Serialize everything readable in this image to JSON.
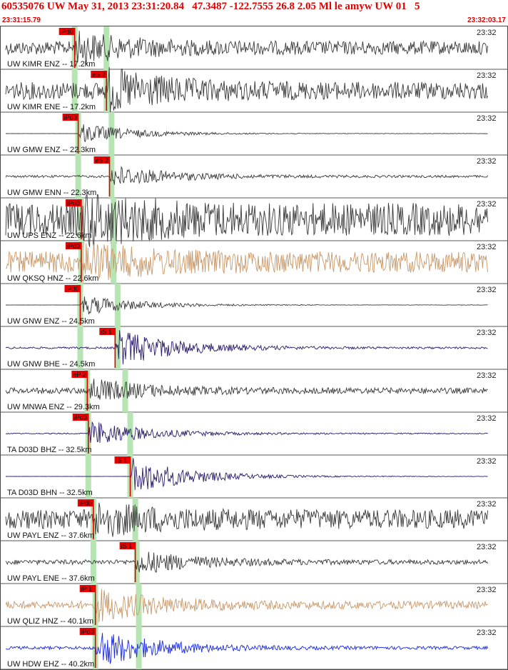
{
  "header": {
    "event_line": "60535076 UW May 31, 2013 23:31:20.84   47.3487 -122.7555 26.8 2.05 Ml le amyw UW 01   5",
    "start_time": "23:31:15.79",
    "end_time": "23:32:03.17"
  },
  "colors": {
    "pick": "#e00000",
    "pick_box": "#ee0000",
    "theoretical_band": "#b6e4b3",
    "trace_default": "#3a3a3a"
  },
  "traces": [
    {
      "label": "UW KIMR ENZ -- 17.2km",
      "time_label": "23:32",
      "pick": "iPd0",
      "pick_t": 0.145,
      "green_t": [
        0.145,
        0.208
      ],
      "color": "#3a3a3a",
      "flat": false,
      "noise": 0.35,
      "event_amp": 0.6
    },
    {
      "label": "UW KIMR ENE -- 17.2km",
      "time_label": "23:32",
      "pick": "eS 2",
      "pick_t": 0.208,
      "green_t": [
        0.145,
        0.208
      ],
      "color": "#3a3a3a",
      "flat": false,
      "noise": 0.45,
      "event_amp": 0.9
    },
    {
      "label": "UW GMW ENZ -- 22.3km",
      "time_label": "23:32",
      "pick": "iPd0",
      "pick_t": 0.152,
      "green_t": [
        0.152,
        0.218
      ],
      "color": "#3a3a3a",
      "flat": true,
      "noise": 0.01,
      "event_amp": 0.55
    },
    {
      "label": "UW GMW ENN -- 22.3km",
      "time_label": "23:32",
      "pick": "eS 2",
      "pick_t": 0.214,
      "green_t": [
        0.152,
        0.218
      ],
      "color": "#3a3a3a",
      "flat": false,
      "noise": 0.06,
      "event_amp": 0.6
    },
    {
      "label": "UW UPS ENZ -- 22.6km",
      "time_label": "23:32",
      "pick": "iPd0",
      "pick_t": 0.158,
      "green_t": [
        0.158,
        0.222
      ],
      "color": "#3a3a3a",
      "flat": false,
      "noise": 0.85,
      "event_amp": 0.9
    },
    {
      "label": "UW QKSQ HNZ -- 22.6km",
      "time_label": "23:32",
      "pick": "iPd0",
      "pick_t": 0.158,
      "green_t": [
        0.158,
        0.222
      ],
      "color": "#c8996a",
      "flat": false,
      "noise": 0.55,
      "event_amp": 0.7
    },
    {
      "label": "UW GNW ENZ -- 24.5km",
      "time_label": "23:32",
      "pick": "iPd0",
      "pick_t": 0.156,
      "green_t": [
        0.156,
        0.23
      ],
      "color": "#3a3a3a",
      "flat": true,
      "noise": 0.01,
      "event_amp": 0.55
    },
    {
      "label": "UW GNW BHE -- 24.5km",
      "time_label": "23:32",
      "pick": "iS 1",
      "pick_t": 0.225,
      "green_t": [
        0.156,
        0.23
      ],
      "color": "#2a1a6a",
      "flat": false,
      "noise": 0.05,
      "event_amp": 1.0
    },
    {
      "label": "UW MNWA ENZ -- 29.3km",
      "time_label": "23:32",
      "pick": "eP 2",
      "pick_t": 0.17,
      "green_t": [
        0.17,
        0.245
      ],
      "color": "#3a3a3a",
      "flat": false,
      "noise": 0.15,
      "event_amp": 0.6
    },
    {
      "label": "TA D03D BHZ -- 32.5km",
      "time_label": "23:32",
      "pick": "iPd0",
      "pick_t": 0.172,
      "green_t": [
        0.172,
        0.255
      ],
      "color": "#2a1a6a",
      "flat": false,
      "noise": 0.03,
      "event_amp": 0.7
    },
    {
      "label": "TA D03D BHN -- 32.5km",
      "time_label": "23:32",
      "pick": "iS 1",
      "pick_t": 0.255,
      "green_t": [
        0.172,
        0.255
      ],
      "color": "#2a1a6a",
      "flat": true,
      "noise": 0.01,
      "event_amp": 1.0
    },
    {
      "label": "UW PAYL ENZ -- 37.6km",
      "time_label": "23:32",
      "pick": "iPd0",
      "pick_t": 0.182,
      "green_t": [
        0.182,
        0.265
      ],
      "color": "#3a3a3a",
      "flat": false,
      "noise": 0.5,
      "event_amp": 0.6
    },
    {
      "label": "UW PAYL ENE -- 37.6km",
      "time_label": "23:32",
      "pick": "iS 1",
      "pick_t": 0.265,
      "green_t": [
        0.182,
        0.268
      ],
      "color": "#3a3a3a",
      "flat": false,
      "noise": 0.12,
      "event_amp": 0.6
    },
    {
      "label": "UW QLIZ HNZ -- 40.1km",
      "time_label": "23:32",
      "pick": "iP 1",
      "pick_t": 0.186,
      "green_t": [
        0.186,
        0.272
      ],
      "color": "#c8996a",
      "flat": false,
      "noise": 0.2,
      "event_amp": 0.8
    },
    {
      "label": "UW HDW EHZ -- 40.2km",
      "time_label": "23:32",
      "pick": "iPd0",
      "pick_t": 0.186,
      "green_t": [
        0.186,
        0.272
      ],
      "color": "#1a2ae0",
      "flat": false,
      "noise": 0.08,
      "event_amp": 1.0
    }
  ]
}
